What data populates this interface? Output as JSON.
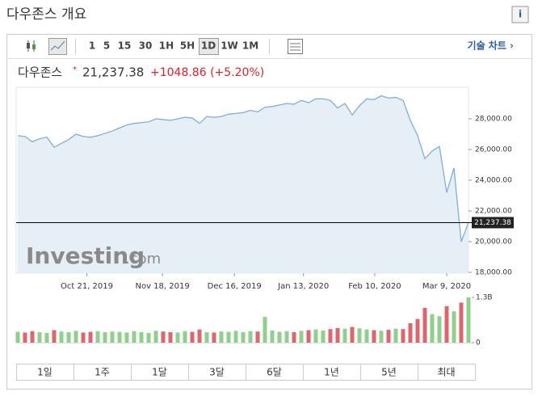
{
  "header": {
    "title": "다우존스 개요",
    "info": "i"
  },
  "toolbar": {
    "intervals": [
      "1",
      "5",
      "15",
      "30",
      "1H",
      "5H",
      "1D",
      "1W",
      "1M"
    ],
    "selected_interval": "1D",
    "advanced": "기술 차트 ›"
  },
  "quote": {
    "name": "다우존스",
    "last": "21,237.38",
    "change": "+1048.86 (+5.20%)"
  },
  "watermark": {
    "brand": "Investing",
    "suffix": ".com"
  },
  "chart_data": [
    {
      "type": "area",
      "color": "#7eaedb",
      "fill": "#e6eef6",
      "values": [
        26900,
        26850,
        26500,
        26700,
        26800,
        26150,
        26400,
        26650,
        27000,
        26850,
        26800,
        26900,
        27050,
        27200,
        27400,
        27600,
        27700,
        27750,
        27800,
        28000,
        27950,
        27900,
        28000,
        28100,
        28050,
        27700,
        28150,
        28100,
        28150,
        28300,
        28350,
        28400,
        28550,
        28450,
        28750,
        28800,
        28900,
        29000,
        28950,
        29200,
        29050,
        29300,
        29300,
        29200,
        28700,
        29000,
        28250,
        28850,
        29300,
        29250,
        29500,
        29350,
        29400,
        29200,
        27900,
        26900,
        25400,
        25900,
        26200,
        23200,
        24800,
        20000,
        21237.38
      ],
      "last_value": 21237.38,
      "last_label": "21,237.38",
      "ylim": [
        18000,
        30000
      ],
      "yticks": [
        {
          "value": 18000,
          "label": "18,000.00"
        },
        {
          "value": 20000,
          "label": "20,000.00"
        },
        {
          "value": 22000,
          "label": "22,000.00"
        },
        {
          "value": 24000,
          "label": "24,000.00"
        },
        {
          "value": 26000,
          "label": "26,000.00"
        },
        {
          "value": 28000,
          "label": "28,000.00"
        }
      ],
      "xticks": [
        {
          "value": 9.5,
          "label": "Oct 21, 2019"
        },
        {
          "value": 19.9,
          "label": "Nov 18, 2019"
        },
        {
          "value": 29.8,
          "label": "Dec 16, 2019"
        },
        {
          "value": 39.3,
          "label": "Jan 13, 2020"
        },
        {
          "value": 49.1,
          "label": "Feb 10, 2020"
        },
        {
          "value": 59,
          "label": "Mar 9, 2020"
        }
      ]
    },
    {
      "type": "bar",
      "up_color": "#8fd08c",
      "down_color": "#e0646c",
      "values": [
        310000000,
        290000000,
        330000000,
        300000000,
        280000000,
        360000000,
        320000000,
        300000000,
        340000000,
        290000000,
        310000000,
        330000000,
        300000000,
        320000000,
        310000000,
        290000000,
        330000000,
        300000000,
        280000000,
        340000000,
        320000000,
        300000000,
        290000000,
        330000000,
        310000000,
        380000000,
        300000000,
        290000000,
        320000000,
        310000000,
        340000000,
        300000000,
        330000000,
        320000000,
        740000000,
        350000000,
        310000000,
        330000000,
        300000000,
        340000000,
        360000000,
        380000000,
        350000000,
        390000000,
        420000000,
        400000000,
        450000000,
        410000000,
        380000000,
        360000000,
        340000000,
        370000000,
        400000000,
        390000000,
        560000000,
        680000000,
        1000000000,
        820000000,
        760000000,
        1050000000,
        900000000,
        1150000000,
        1300000000
      ],
      "ylim": [
        0,
        1300000000
      ],
      "yticks": [
        0,
        {
          "value": 1300000000,
          "label": "1.3B"
        }
      ]
    }
  ],
  "ranges": [
    "1일",
    "1주",
    "1달",
    "3달",
    "6달",
    "1년",
    "5년",
    "최대"
  ]
}
